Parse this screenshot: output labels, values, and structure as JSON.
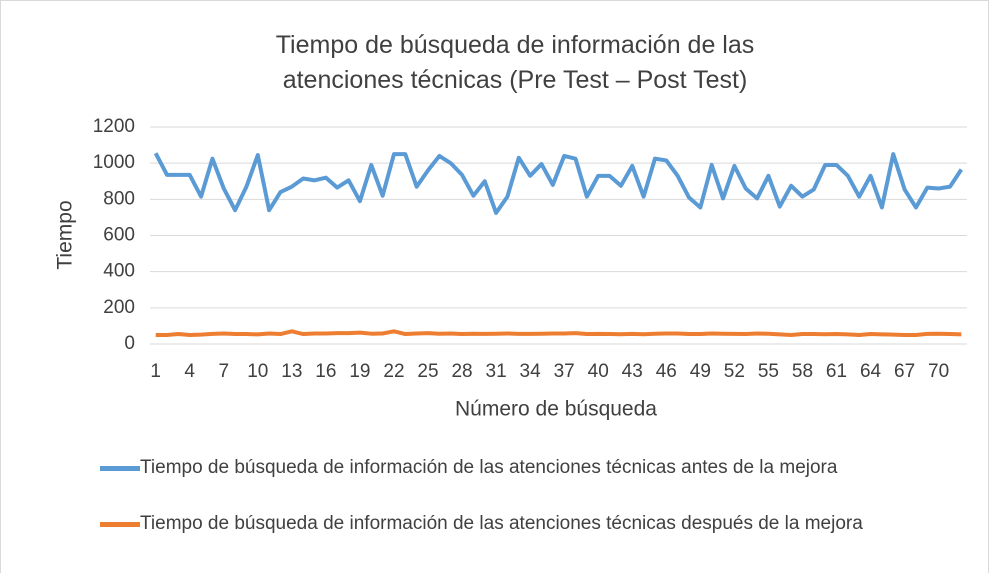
{
  "chart_data": {
    "type": "line",
    "title": "Tiempo de búsqueda de información de las atenciones técnicas (Pre Test – Post Test)",
    "xlabel": "Número de búsqueda",
    "ylabel": "Tiempo",
    "categories": [
      "1",
      null,
      null,
      "4",
      null,
      null,
      "7",
      null,
      null,
      "10",
      null,
      null,
      "13",
      null,
      null,
      "16",
      null,
      null,
      "19",
      null,
      null,
      "22",
      null,
      null,
      "25",
      null,
      null,
      "28",
      null,
      null,
      "31",
      null,
      null,
      "34",
      null,
      null,
      "37",
      null,
      null,
      "40",
      null,
      null,
      "43",
      null,
      null,
      "46",
      null,
      null,
      "49",
      null,
      null,
      "52",
      null,
      null,
      "55",
      null,
      null,
      "58",
      null,
      null,
      "61",
      null,
      null,
      "64",
      null,
      null,
      "67",
      null,
      null,
      "70",
      null,
      null
    ],
    "series": [
      {
        "name": "Tiempo de búsqueda de información de las atenciones técnicas antes de la mejora",
        "color": "#5b9bd5",
        "values": [
          1055,
          935,
          935,
          935,
          815,
          1025,
          860,
          740,
          870,
          1045,
          740,
          840,
          870,
          915,
          905,
          920,
          865,
          905,
          790,
          990,
          820,
          1050,
          1050,
          870,
          960,
          1040,
          1000,
          935,
          820,
          900,
          725,
          815,
          1030,
          930,
          995,
          880,
          1040,
          1025,
          815,
          930,
          930,
          875,
          985,
          815,
          1025,
          1015,
          930,
          810,
          755,
          990,
          805,
          985,
          860,
          805,
          930,
          760,
          875,
          815,
          855,
          990,
          990,
          930,
          815,
          930,
          755,
          1050,
          855,
          755,
          865,
          860,
          870,
          965
        ]
      },
      {
        "name": "Tiempo de búsqueda de información de las atenciones técnicas después de la mejora",
        "color": "#ed7d31",
        "values": [
          50,
          50,
          55,
          50,
          52,
          56,
          58,
          55,
          55,
          53,
          58,
          55,
          70,
          55,
          58,
          58,
          60,
          60,
          63,
          57,
          58,
          70,
          55,
          58,
          60,
          57,
          58,
          55,
          57,
          56,
          57,
          58,
          56,
          56,
          57,
          58,
          58,
          60,
          55,
          56,
          55,
          54,
          56,
          54,
          57,
          58,
          58,
          55,
          55,
          58,
          57,
          56,
          55,
          58,
          57,
          53,
          50,
          55,
          55,
          54,
          55,
          53,
          50,
          55,
          53,
          52,
          50,
          50,
          56,
          57,
          55,
          53
        ]
      }
    ],
    "ylim": [
      0,
      1200
    ],
    "yticks": [
      0,
      200,
      400,
      600,
      800,
      1000,
      1200
    ],
    "grid": true
  }
}
